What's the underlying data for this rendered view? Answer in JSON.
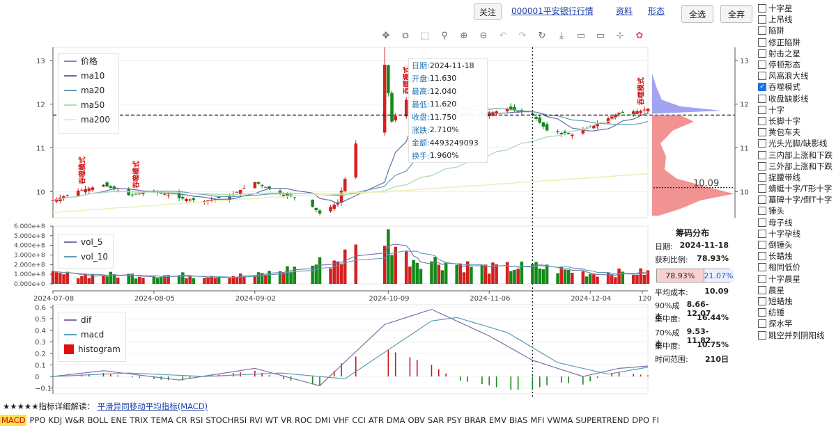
{
  "header": {
    "follow_btn": "关注",
    "stock_link": "000001平安银行行情",
    "info_link": "资料",
    "shape_link": "形态",
    "select_all": "全选",
    "select_none": "全弃"
  },
  "patterns": [
    {
      "label": "十字星",
      "checked": false
    },
    {
      "label": "上吊线",
      "checked": false
    },
    {
      "label": "陷阱",
      "checked": false
    },
    {
      "label": "修正陷阱",
      "checked": false
    },
    {
      "label": "射击之星",
      "checked": false
    },
    {
      "label": "停顿形态",
      "checked": false
    },
    {
      "label": "风高浪大线",
      "checked": false
    },
    {
      "label": "吞噬模式",
      "checked": true
    },
    {
      "label": "收盘缺影线",
      "checked": false
    },
    {
      "label": "十字",
      "checked": false
    },
    {
      "label": "长脚十字",
      "checked": false
    },
    {
      "label": "黄包车夫",
      "checked": false
    },
    {
      "label": "光头光脚/缺影线",
      "checked": false
    },
    {
      "label": "三内部上涨和下跌",
      "checked": false
    },
    {
      "label": "三外部上涨和下跌",
      "checked": false
    },
    {
      "label": "捉腰带线",
      "checked": false
    },
    {
      "label": "蜻蜓十字/T形十字",
      "checked": false
    },
    {
      "label": "墓碑十字/倒T十字",
      "checked": false
    },
    {
      "label": "锤头",
      "checked": false
    },
    {
      "label": "母子线",
      "checked": false
    },
    {
      "label": "十字孕线",
      "checked": false
    },
    {
      "label": "倒锤头",
      "checked": false
    },
    {
      "label": "长蜡烛",
      "checked": false
    },
    {
      "label": "相同低价",
      "checked": false
    },
    {
      "label": "十字晨星",
      "checked": false
    },
    {
      "label": "晨星",
      "checked": false
    },
    {
      "label": "短蜡烛",
      "checked": false
    },
    {
      "label": "纺锤",
      "checked": false
    },
    {
      "label": "探水竿",
      "checked": false
    },
    {
      "label": "跳空并列阴阳线",
      "checked": false
    }
  ],
  "tooltip": [
    {
      "k": "日期:",
      "v": "2024-11-18"
    },
    {
      "k": "开盘:",
      "v": "11.630"
    },
    {
      "k": "最高:",
      "v": "12.040"
    },
    {
      "k": "最低:",
      "v": "11.620"
    },
    {
      "k": "收盘:",
      "v": "11.750"
    },
    {
      "k": "涨跌:",
      "v": "2.710%"
    },
    {
      "k": "金额:",
      "v": "4493249093"
    },
    {
      "k": "换手:",
      "v": "1.960%"
    }
  ],
  "chip": {
    "title": "筹码分布",
    "date_label": "日期:",
    "date": "2024-11-18",
    "profit_label": "获利比例:",
    "profit": "78.93%",
    "bar_left": "78.93%",
    "bar_right": "21.07%",
    "avg_label": "平均成本:",
    "avg": "10.09",
    "c90_label": "90%成本:",
    "c90": "8.66-12.07",
    "conc1_label": "集中度:",
    "conc1": "16.44%",
    "c70_label": "70%成本:",
    "c70": "9.53-11.82",
    "conc2_label": "集中度:",
    "conc2": "10.75%",
    "range_label": "时间范围:",
    "range": "210日",
    "avg_marker": "10.09"
  },
  "explain": {
    "prefix": "★★★★★指标详细解读：",
    "link": "平滑异同移动平均指标(MACD)"
  },
  "indicators": [
    "MACD",
    "PPO",
    "KDJ",
    "W&R",
    "BOLL",
    "ENE",
    "TRIX",
    "TEMA",
    "CR",
    "RSI",
    "STOCHRSI",
    "RVI",
    "WT",
    "VR",
    "ROC",
    "DMI",
    "VHF",
    "CCI",
    "ATR",
    "DMA",
    "OBV",
    "SAR",
    "PSY",
    "BRAR",
    "EMV",
    "BIAS",
    "MFI",
    "VWMA",
    "SUPERTREND",
    "DPO",
    "FI"
  ],
  "selected_indicator": "MACD",
  "chart_data": [
    {
      "type": "candlestick",
      "legend": [
        "价格",
        "ma10",
        "ma20",
        "ma50",
        "ma200"
      ],
      "ylim": [
        9.4,
        13.3
      ],
      "yticks": [
        10,
        11,
        12,
        13
      ],
      "pattern_label": "吞噬模式",
      "pattern_marks": [
        "2024-07-16",
        "2024-07-31",
        "2024-10-14",
        "2024-12-18"
      ],
      "crosshair_y": 11.75,
      "colors": {
        "up": "#d42020",
        "down": "#128a1a",
        "ma10": "#5b6ea8",
        "ma20": "#5d9db5",
        "ma50": "#b4dcb4",
        "ma200": "#ecf0b8"
      },
      "anchors": [
        {
          "d": "2024-07-08",
          "c": 9.8
        },
        {
          "d": "2024-07-15",
          "c": 10.02
        },
        {
          "d": "2024-07-22",
          "c": 10.15
        },
        {
          "d": "2024-07-29",
          "c": 9.92
        },
        {
          "d": "2024-08-05",
          "c": 10.0
        },
        {
          "d": "2024-08-12",
          "c": 9.85
        },
        {
          "d": "2024-08-19",
          "c": 9.78
        },
        {
          "d": "2024-08-26",
          "c": 9.9
        },
        {
          "d": "2024-09-02",
          "c": 10.22
        },
        {
          "d": "2024-09-09",
          "c": 9.95
        },
        {
          "d": "2024-09-16",
          "c": 9.8
        },
        {
          "d": "2024-09-20",
          "c": 9.5
        },
        {
          "d": "2024-09-25",
          "c": 9.75
        },
        {
          "d": "2024-09-30",
          "c": 11.1
        },
        {
          "d": "2024-10-08",
          "c": 12.9
        },
        {
          "d": "2024-10-10",
          "c": 11.6
        },
        {
          "d": "2024-10-14",
          "c": 12.1
        },
        {
          "d": "2024-10-21",
          "c": 12.0
        },
        {
          "d": "2024-10-28",
          "c": 11.8
        },
        {
          "d": "2024-11-04",
          "c": 11.75
        },
        {
          "d": "2024-11-11",
          "c": 11.9
        },
        {
          "d": "2024-11-18",
          "c": 11.75
        },
        {
          "d": "2024-11-22",
          "c": 11.4
        },
        {
          "d": "2024-11-29",
          "c": 11.3
        },
        {
          "d": "2024-12-06",
          "c": 11.55
        },
        {
          "d": "2024-12-12",
          "c": 11.8
        },
        {
          "d": "2024-12-18",
          "c": 11.85
        },
        {
          "d": "2024-12-20",
          "c": 11.9
        }
      ]
    },
    {
      "type": "bar",
      "legend": [
        "vol_5",
        "vol_10"
      ],
      "ylim": [
        0,
        600000000
      ],
      "yticks": [
        "0.000e+0",
        "1.000e+8",
        "2.000e+8",
        "3.000e+8",
        "4.000e+8",
        "5.000e+8",
        "6.000e+8"
      ],
      "xticks": [
        "2024-07-08",
        "2024-08-05",
        "2024-09-02",
        "2024-10-09",
        "2024-11-06",
        "2024-12-04",
        "120"
      ],
      "vol_anchors": [
        {
          "d": "2024-07-08",
          "v": 95000000
        },
        {
          "d": "2024-09-02",
          "v": 85000000
        },
        {
          "d": "2024-09-25",
          "v": 250000000
        },
        {
          "d": "2024-10-08",
          "v": 520000000
        },
        {
          "d": "2024-10-14",
          "v": 280000000
        },
        {
          "d": "2024-11-06",
          "v": 160000000
        },
        {
          "d": "2024-11-18",
          "v": 180000000
        },
        {
          "d": "2024-12-04",
          "v": 110000000
        },
        {
          "d": "2024-12-20",
          "v": 120000000
        }
      ]
    },
    {
      "type": "line+bar",
      "legend": [
        "dif",
        "macd",
        "histogram"
      ],
      "ylim": [
        -0.15,
        0.62
      ],
      "yticks": [
        "−0.1",
        "0",
        "0.1",
        "0.2",
        "0.3",
        "0.4",
        "0.5",
        "0.6"
      ],
      "dif_anchors": [
        {
          "d": "2024-07-08",
          "v": 0.0
        },
        {
          "d": "2024-07-22",
          "v": 0.05
        },
        {
          "d": "2024-08-12",
          "v": -0.03
        },
        {
          "d": "2024-09-02",
          "v": 0.07
        },
        {
          "d": "2024-09-20",
          "v": -0.08
        },
        {
          "d": "2024-10-08",
          "v": 0.45
        },
        {
          "d": "2024-10-21",
          "v": 0.58
        },
        {
          "d": "2024-11-06",
          "v": 0.35
        },
        {
          "d": "2024-11-18",
          "v": 0.14
        },
        {
          "d": "2024-12-02",
          "v": 0.0
        },
        {
          "d": "2024-12-12",
          "v": 0.07
        },
        {
          "d": "2024-12-20",
          "v": 0.09
        }
      ],
      "macd_anchors": [
        {
          "d": "2024-07-08",
          "v": 0.0
        },
        {
          "d": "2024-07-29",
          "v": 0.03
        },
        {
          "d": "2024-08-19",
          "v": 0.0
        },
        {
          "d": "2024-09-09",
          "v": 0.03
        },
        {
          "d": "2024-09-27",
          "v": -0.02
        },
        {
          "d": "2024-10-21",
          "v": 0.48
        },
        {
          "d": "2024-10-28",
          "v": 0.51
        },
        {
          "d": "2024-11-11",
          "v": 0.38
        },
        {
          "d": "2024-11-25",
          "v": 0.12
        },
        {
          "d": "2024-12-09",
          "v": 0.02
        },
        {
          "d": "2024-12-20",
          "v": 0.08
        }
      ]
    },
    {
      "type": "horizontal-histogram",
      "title": "筹码分布",
      "ylim": [
        9.4,
        13.3
      ],
      "avg_cost": 10.09,
      "profit_color": "#f08080",
      "loss_color": "#8c8cf0"
    }
  ]
}
